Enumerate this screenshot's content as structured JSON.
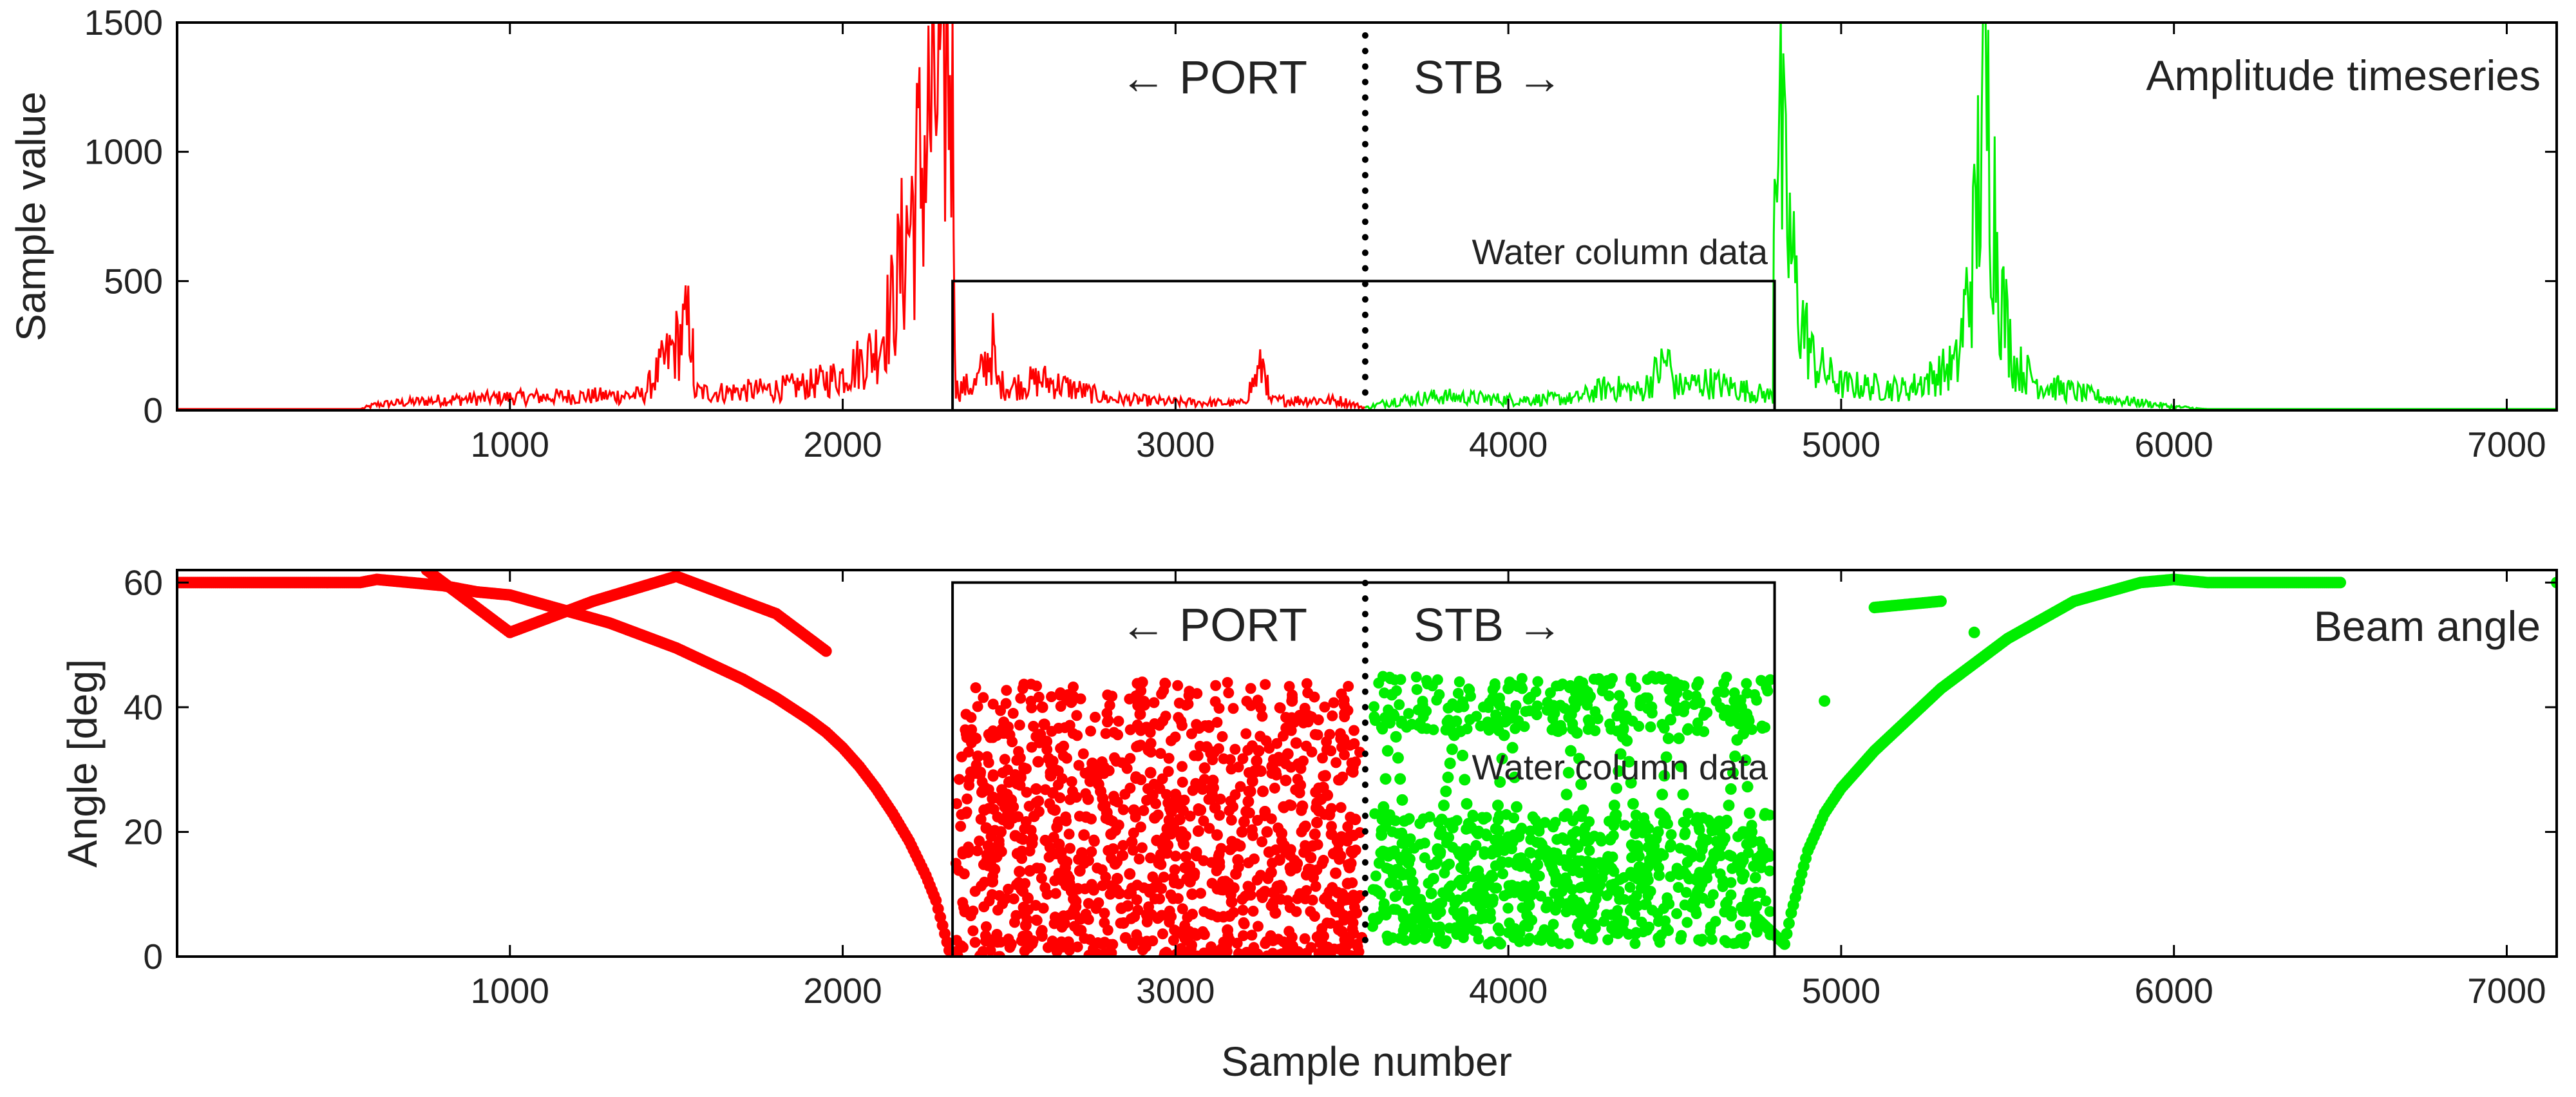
{
  "figure": {
    "xlabel": "Sample number"
  },
  "colors": {
    "port": "#ff0000",
    "stb": "#00ee00",
    "axis": "#000000",
    "text": "#222222"
  },
  "annotations": {
    "port": "← PORT",
    "stb": "STB →",
    "water_column": "Water column data",
    "divider_sample": 3570
  },
  "chart_data": [
    {
      "type": "line",
      "title": "Amplitude timeseries",
      "xlabel": "",
      "ylabel": "Sample value",
      "xlim": [
        0,
        7150
      ],
      "ylim": [
        0,
        1500
      ],
      "xticks": [
        1000,
        2000,
        3000,
        4000,
        5000,
        6000,
        7000
      ],
      "yticks": [
        0,
        500,
        1000,
        1500
      ],
      "water_column_box": {
        "x": [
          2330,
          4800
        ],
        "y": [
          0,
          500
        ]
      },
      "series": [
        {
          "name": "PORT",
          "color": "#ff0000",
          "x": [
            0,
            550,
            600,
            800,
            1000,
            1200,
            1400,
            1548,
            1552,
            1600,
            1800,
            1900,
            2000,
            2100,
            2150,
            2200,
            2250,
            2300,
            2330,
            2340,
            2400,
            2455,
            2460,
            2500,
            2600,
            2700,
            2800,
            3000,
            3200,
            3270,
            3280,
            3400,
            3500,
            3570
          ],
          "values": [
            5,
            5,
            25,
            45,
            55,
            60,
            65,
            390,
            80,
            75,
            90,
            110,
            150,
            260,
            450,
            800,
            1150,
            1500,
            1500,
            90,
            110,
            280,
            120,
            100,
            130,
            90,
            50,
            35,
            30,
            210,
            40,
            45,
            40,
            10
          ]
        },
        {
          "name": "STB",
          "color": "#00ee00",
          "x": [
            3570,
            3650,
            3800,
            4000,
            4200,
            4300,
            4400,
            4480,
            4500,
            4600,
            4700,
            4795,
            4800,
            4830,
            4870,
            4920,
            5000,
            5200,
            5350,
            5400,
            5430,
            5450,
            5480,
            5520,
            5600,
            5800,
            6000,
            6100,
            6500,
            7150
          ],
          "values": [
            10,
            40,
            60,
            45,
            50,
            100,
            80,
            220,
            100,
            120,
            90,
            60,
            1500,
            900,
            450,
            200,
            110,
            90,
            200,
            700,
            1400,
            1100,
            500,
            200,
            110,
            50,
            15,
            5,
            5,
            5
          ]
        }
      ]
    },
    {
      "type": "scatter",
      "title": "Beam angle",
      "xlabel": "Sample number",
      "ylabel": "Angle [deg]",
      "xlim": [
        0,
        7150
      ],
      "ylim": [
        0,
        62
      ],
      "xticks": [
        1000,
        2000,
        3000,
        4000,
        5000,
        6000,
        7000
      ],
      "yticks": [
        0,
        20,
        40,
        60
      ],
      "water_column_box": {
        "x": [
          2330,
          4800
        ],
        "y": [
          0,
          60
        ]
      },
      "series": [
        {
          "name": "PORT",
          "color": "#ff0000",
          "x": [
            0,
            200,
            400,
            550,
            600,
            700,
            800,
            900,
            1000,
            1100,
            1200,
            1300,
            1400,
            1500,
            1600,
            1700,
            1800,
            1900,
            1950,
            2000,
            2050,
            2100,
            2150,
            2200,
            2250,
            2280,
            2300,
            2320,
            750,
            1000,
            1250,
            1500,
            1800,
            1950,
            2400,
            2450,
            2500,
            2550,
            2600,
            2650,
            2700,
            2750,
            2800,
            2850,
            2900,
            2950,
            3000,
            3050,
            3100,
            3150,
            3200,
            3250,
            3300,
            3350,
            3400,
            3450,
            3500,
            3540
          ],
          "values": [
            60,
            60,
            60,
            60,
            60.5,
            60,
            59.5,
            58.5,
            58,
            56.5,
            55,
            53.5,
            51.5,
            49.5,
            47,
            44.5,
            41.5,
            38,
            36,
            33.5,
            30.5,
            27,
            23,
            18.5,
            13,
            9,
            5,
            1,
            62,
            52,
            57,
            61,
            55,
            49,
            35,
            12,
            28,
            5,
            40,
            18,
            8,
            31,
            22,
            3,
            44,
            15,
            26,
            10,
            37,
            2,
            20,
            33,
            7,
            41,
            14,
            29,
            4,
            22
          ]
        },
        {
          "name": "STB",
          "color": "#00ee00",
          "x": [
            3600,
            3650,
            3700,
            3750,
            3800,
            3850,
            3900,
            3950,
            4000,
            4050,
            4100,
            4150,
            4200,
            4250,
            4300,
            4350,
            4400,
            4450,
            4500,
            4550,
            4600,
            4650,
            4700,
            4750,
            4830,
            4850,
            4900,
            4950,
            5000,
            5100,
            5200,
            5300,
            5400,
            5500,
            5600,
            5700,
            5800,
            5900,
            6000,
            6100,
            6500,
            7150,
            5100,
            5300,
            4950,
            5400
          ],
          "values": [
            6,
            42,
            15,
            3,
            22,
            40,
            9,
            13,
            43,
            5,
            18,
            12,
            40,
            7,
            16,
            38,
            11,
            20,
            44,
            8,
            14,
            19,
            40,
            6,
            2,
            7,
            17,
            23,
            27,
            33,
            38,
            43,
            47,
            51,
            54,
            57,
            58.5,
            60,
            60.5,
            60,
            60,
            60,
            56,
            57,
            41,
            52
          ]
        }
      ]
    }
  ]
}
